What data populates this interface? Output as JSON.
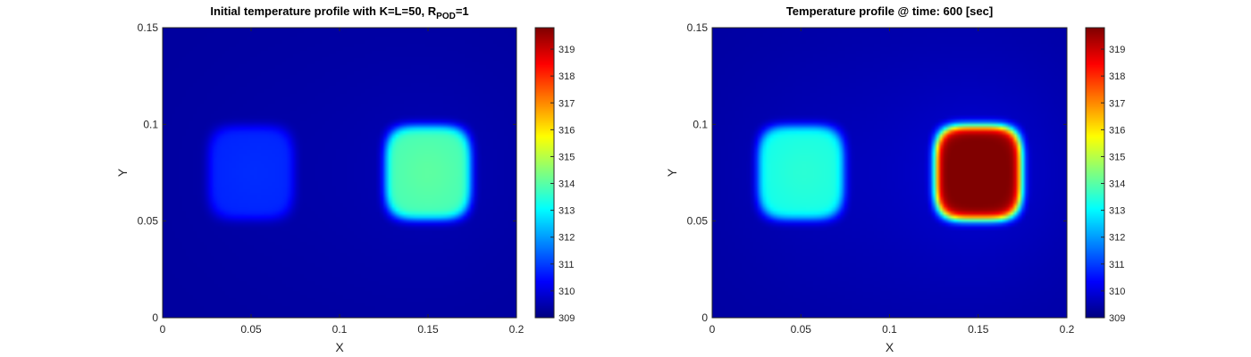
{
  "chart_data": [
    {
      "type": "heatmap",
      "title_main": "Initial temperature profile with K=L=50, R",
      "title_sub": "POD",
      "title_tail": "=1",
      "xlabel": "X",
      "ylabel": "Y",
      "xlim": [
        0,
        0.2
      ],
      "ylim": [
        0,
        0.15
      ],
      "xticks": [
        "0",
        "0.05",
        "0.1",
        "0.15",
        "0.2"
      ],
      "xtick_values": [
        0,
        0.05,
        0.1,
        0.15,
        0.2
      ],
      "yticks": [
        "0",
        "0.05",
        "0.1",
        "0.15"
      ],
      "ytick_values": [
        0,
        0.05,
        0.1,
        0.15
      ],
      "colormap": "jet",
      "clim": [
        309,
        319.8
      ],
      "colorbar_ticks": [
        "309",
        "310",
        "311",
        "312",
        "313",
        "314",
        "315",
        "316",
        "317",
        "318",
        "319"
      ],
      "colorbar_tick_values": [
        309,
        310,
        311,
        312,
        313,
        314,
        315,
        316,
        317,
        318,
        319
      ],
      "background_temperature": 309.3,
      "hot_regions": [
        {
          "shape": "square",
          "x_range": [
            0.025,
            0.075
          ],
          "y_range": [
            0.05,
            0.1
          ],
          "peak_temperature": 310.7
        },
        {
          "shape": "square",
          "x_range": [
            0.125,
            0.175
          ],
          "y_range": [
            0.05,
            0.1
          ],
          "peak_temperature": 313.8
        }
      ]
    },
    {
      "type": "heatmap",
      "title_main": "Temperature profile @ time: 600 [sec]",
      "title_sub": "",
      "title_tail": "",
      "xlabel": "X",
      "ylabel": "Y",
      "xlim": [
        0,
        0.2
      ],
      "ylim": [
        0,
        0.15
      ],
      "xticks": [
        "0",
        "0.05",
        "0.1",
        "0.15",
        "0.2"
      ],
      "xtick_values": [
        0,
        0.05,
        0.1,
        0.15,
        0.2
      ],
      "yticks": [
        "0",
        "0.05",
        "0.1",
        "0.15"
      ],
      "ytick_values": [
        0,
        0.05,
        0.1,
        0.15
      ],
      "colormap": "jet",
      "clim": [
        309,
        319.8
      ],
      "colorbar_ticks": [
        "309",
        "310",
        "311",
        "312",
        "313",
        "314",
        "315",
        "316",
        "317",
        "318",
        "319"
      ],
      "colorbar_tick_values": [
        309,
        310,
        311,
        312,
        313,
        314,
        315,
        316,
        317,
        318,
        319
      ],
      "background_temperature": 309.3,
      "hot_regions": [
        {
          "shape": "square",
          "x_range": [
            0.025,
            0.075
          ],
          "y_range": [
            0.05,
            0.1
          ],
          "peak_temperature": 313.2
        },
        {
          "shape": "square",
          "x_range": [
            0.125,
            0.175
          ],
          "y_range": [
            0.05,
            0.1
          ],
          "peak_temperature": 319.6
        }
      ]
    }
  ]
}
